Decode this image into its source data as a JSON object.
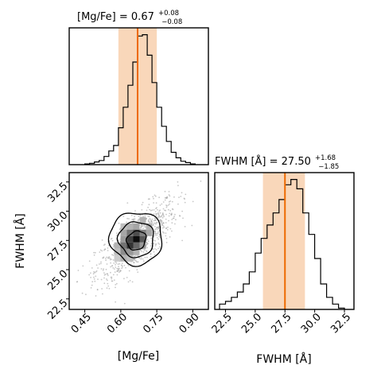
{
  "chart_data": {
    "type": "corner",
    "colors": {
      "median": "#ee6a00",
      "band": "#f7c9a3",
      "contour": "#000000",
      "hist": "#000000"
    },
    "parameters": [
      {
        "key": "mgfe",
        "label": "[Mg/Fe]",
        "ticks": [
          "0.45",
          "0.60",
          "0.75",
          "0.90"
        ],
        "title": {
          "text": "[Mg/Fe] = 0.67",
          "plus": "+0.08",
          "minus": "−0.08"
        },
        "range": [
          0.385,
          0.965
        ],
        "median": 0.67,
        "lower": 0.59,
        "upper": 0.75
      },
      {
        "key": "fwhm",
        "label": "FWHM [Å]",
        "ticks": [
          "22.5",
          "25.0",
          "27.5",
          "30.0",
          "32.5"
        ],
        "title": {
          "text": "FWHM [Å] = 27.50",
          "plus": "+1.68",
          "minus": "−1.85"
        },
        "range": [
          21.6,
          33.3
        ],
        "median": 27.5,
        "lower": 25.65,
        "upper": 29.18
      }
    ],
    "hist_mgfe": {
      "bin_edges": [
        0.45,
        0.47,
        0.49,
        0.51,
        0.53,
        0.55,
        0.57,
        0.59,
        0.61,
        0.63,
        0.65,
        0.67,
        0.69,
        0.71,
        0.73,
        0.75,
        0.77,
        0.79,
        0.81,
        0.83,
        0.85,
        0.87,
        0.89,
        0.91
      ],
      "counts": [
        0.5,
        1,
        2,
        3,
        6,
        10,
        14,
        27,
        42,
        58,
        75,
        94,
        95,
        80,
        60,
        42,
        28,
        17,
        9,
        5,
        2.5,
        1.5,
        0.5
      ]
    },
    "hist_fwhm": {
      "bin_edges": [
        22.0,
        22.5,
        23.0,
        23.5,
        24.0,
        24.5,
        25.0,
        25.5,
        26.0,
        26.5,
        27.0,
        27.5,
        28.0,
        28.5,
        29.0,
        29.5,
        30.0,
        30.5,
        31.0,
        31.5,
        32.0,
        32.5
      ],
      "counts": [
        4,
        6,
        9,
        13,
        19,
        28,
        42,
        53,
        63,
        72,
        82,
        93,
        97,
        90,
        72,
        56,
        38,
        19,
        9,
        4,
        1
      ]
    },
    "contour_levels": [
      {
        "level": 1,
        "center": [
          0.665,
          27.5
        ],
        "a": 0.055,
        "b": 1.1,
        "angle_deg": 0
      },
      {
        "level": 2,
        "center": [
          0.665,
          27.6
        ],
        "a": 0.095,
        "b": 2.2
      },
      {
        "level": 3,
        "center": [
          0.665,
          27.7
        ],
        "a": 0.14,
        "b": 3.3
      }
    ]
  }
}
